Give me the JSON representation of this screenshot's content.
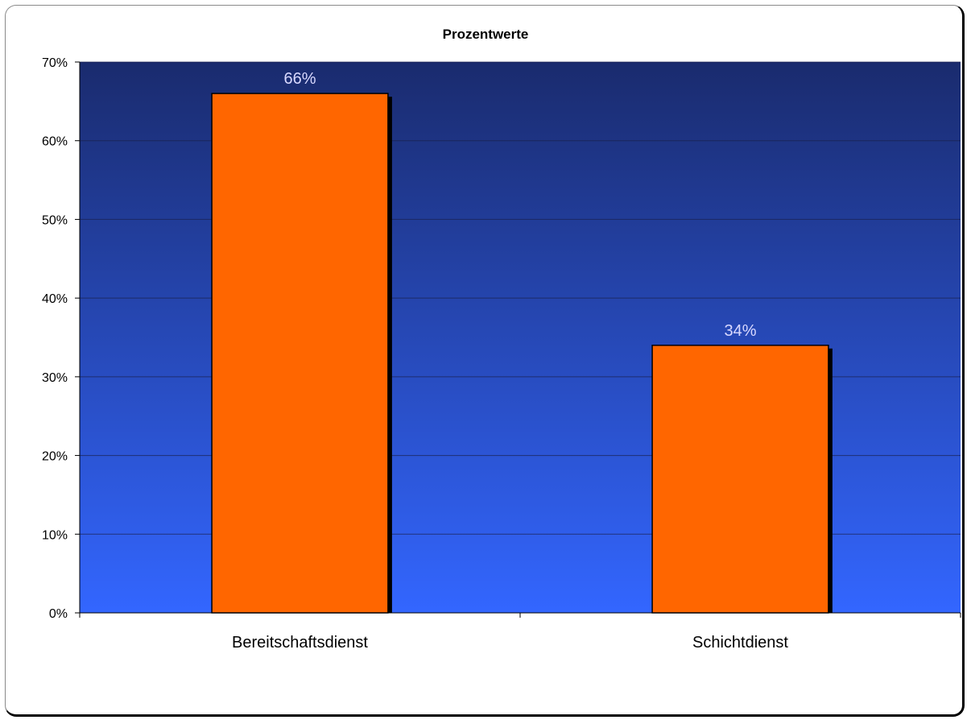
{
  "chart_data": {
    "type": "bar",
    "title": "Prozentwerte",
    "categories": [
      "Bereitschaftsdienst",
      "Schichtdienst"
    ],
    "values": [
      66,
      34
    ],
    "data_labels": [
      "66%",
      "34%"
    ],
    "ylim": [
      0,
      70
    ],
    "yticks": [
      0,
      10,
      20,
      30,
      40,
      50,
      60,
      70
    ],
    "ytick_labels": [
      "0%",
      "10%",
      "20%",
      "30%",
      "40%",
      "50%",
      "60%",
      "70%"
    ],
    "xlabel": "",
    "ylabel": "",
    "grid": true,
    "legend": "none",
    "colors": {
      "bar": "#ff6600",
      "bar_shadow": "#000000",
      "plot_top": "#1a2b6e",
      "plot_bottom": "#3366ff",
      "data_label": "#d9d9ff"
    }
  }
}
